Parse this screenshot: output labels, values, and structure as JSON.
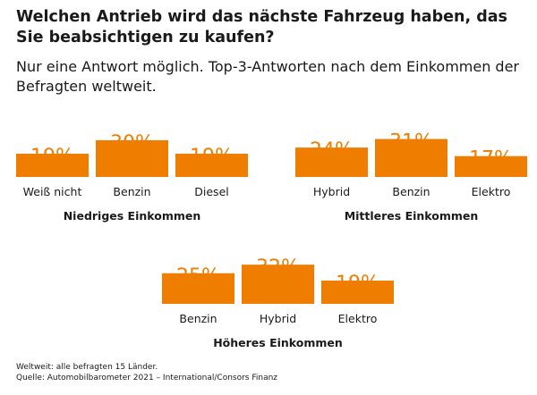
{
  "title": "Welchen Antrieb wird das nächste Fahrzeug haben, das Sie beabsichtigen zu kaufen?",
  "subtitle": "Nur eine Antwort möglich. Top-3-Antworten nach dem Einkommen der Befragten weltweit.",
  "footer": {
    "note": "Weltweit: alle befragten 15 Länder.",
    "source": "Quelle: Automobilbarometer 2021 – International/Consors Finanz"
  },
  "colors": {
    "bar": "#ef7d00",
    "text": "#1a1a1a"
  },
  "chart_data": [
    {
      "type": "bar",
      "title": "Niedriges Einkommen",
      "categories": [
        "Weiß nicht",
        "Benzin",
        "Diesel"
      ],
      "values": [
        19,
        30,
        19
      ],
      "unit": "%",
      "value_labels": [
        "19%",
        "30%",
        "19%"
      ]
    },
    {
      "type": "bar",
      "title": "Mittleres Einkommen",
      "categories": [
        "Hybrid",
        "Benzin",
        "Elektro"
      ],
      "values": [
        24,
        31,
        17
      ],
      "unit": "%",
      "value_labels": [
        "24%",
        "31%",
        "17%"
      ]
    },
    {
      "type": "bar",
      "title": "Höheres Einkommen",
      "categories": [
        "Benzin",
        "Hybrid",
        "Elektro"
      ],
      "values": [
        25,
        32,
        19
      ],
      "unit": "%",
      "value_labels": [
        "25%",
        "32%",
        "19%"
      ]
    }
  ]
}
